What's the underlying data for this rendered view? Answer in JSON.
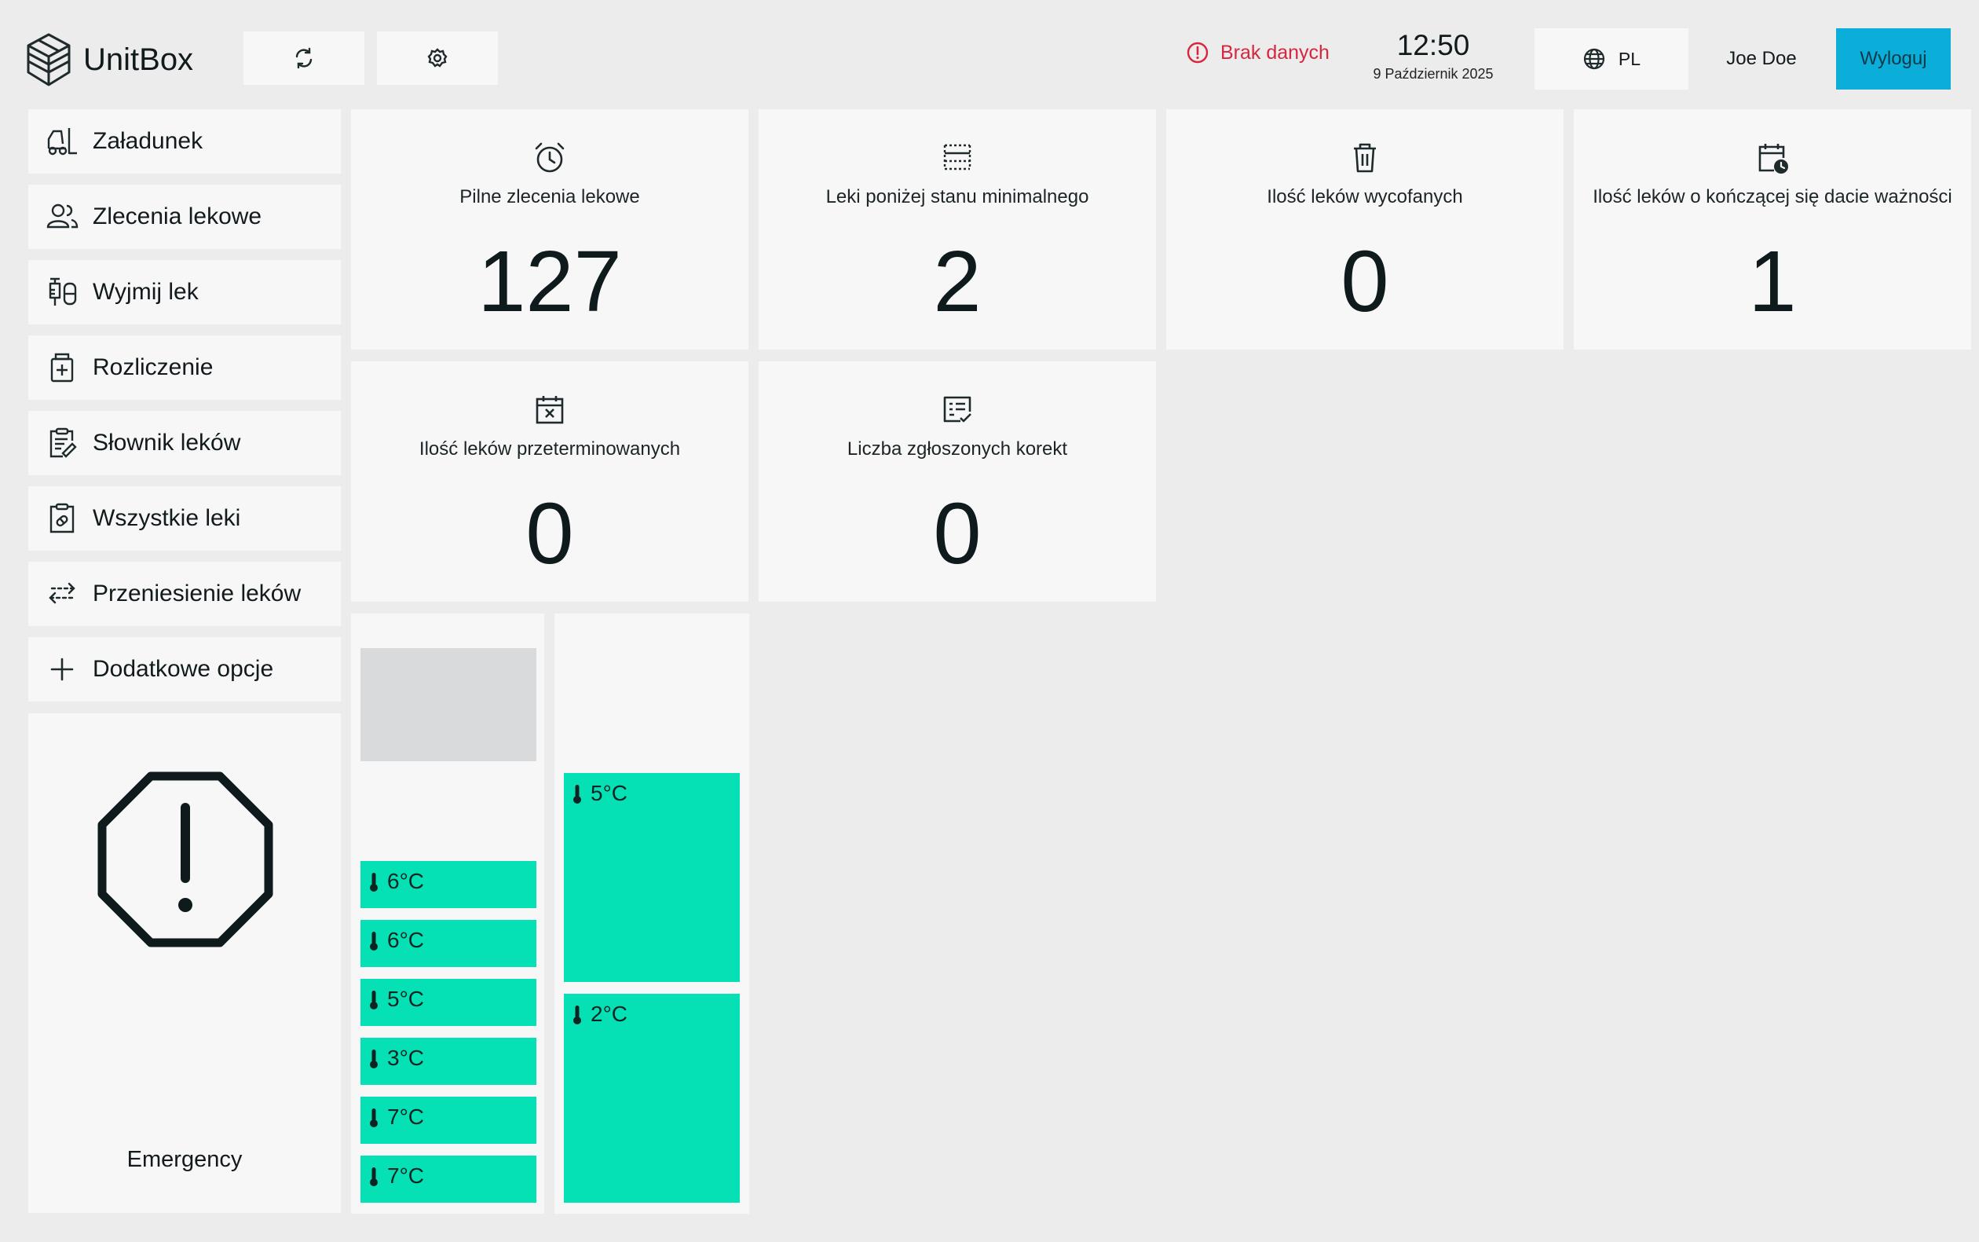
{
  "header": {
    "app_name": "UnitBox",
    "refresh_icon": "refresh-icon",
    "settings_icon": "settings-icon",
    "status_text": "Brak danych",
    "status_color": "#d7263d",
    "time": "12:50",
    "date": "9 Październik 2025",
    "language": "PL",
    "user_name": "Joe Doe",
    "logout_label": "Wyloguj",
    "accent_color": "#0aaed8"
  },
  "sidebar": {
    "items": [
      {
        "label": "Załadunek",
        "icon": "forklift-icon"
      },
      {
        "label": "Zlecenia lekowe",
        "icon": "users-icon"
      },
      {
        "label": "Wyjmij lek",
        "icon": "syringe-icon"
      },
      {
        "label": "Rozliczenie",
        "icon": "medical-bag-icon"
      },
      {
        "label": "Słownik leków",
        "icon": "clipboard-edit-icon"
      },
      {
        "label": "Wszystkie leki",
        "icon": "clipboard-pill-icon"
      },
      {
        "label": "Przeniesienie leków",
        "icon": "transfer-icon"
      },
      {
        "label": "Dodatkowe opcje",
        "icon": "plus-icon"
      }
    ],
    "emergency_label": "Emergency"
  },
  "stats": [
    {
      "title": "Pilne zlecenia lekowe",
      "value": "127",
      "icon": "alarm-clock-icon"
    },
    {
      "title": "Leki poniżej stanu minimalnego",
      "value": "2",
      "icon": "min-level-icon"
    },
    {
      "title": "Ilość leków wycofanych",
      "value": "0",
      "icon": "trash-icon"
    },
    {
      "title": "Ilość leków o kończącej się dacie ważności",
      "value": "1",
      "icon": "calendar-clock-icon"
    },
    {
      "title": "Ilość leków przeterminowanych",
      "value": "0",
      "icon": "calendar-x-icon"
    },
    {
      "title": "Liczba zgłoszonych korekt",
      "value": "0",
      "icon": "report-check-icon"
    }
  ],
  "temperatures": {
    "column1": [
      "6°C",
      "6°C",
      "5°C",
      "3°C",
      "7°C",
      "7°C"
    ],
    "column2": [
      "5°C",
      "2°C"
    ],
    "slot_color": "#05e0b5"
  }
}
